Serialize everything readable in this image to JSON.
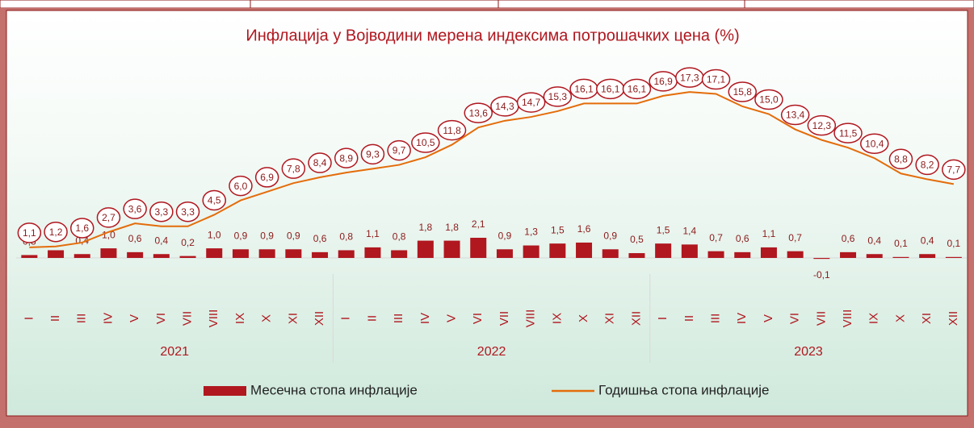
{
  "chart_data": {
    "type": "bar-line",
    "title": "Инфлација у Војводини мерена индексима потрошачких цена (%)",
    "categories": [
      "I",
      "II",
      "III",
      "IV",
      "V",
      "VI",
      "VII",
      "VIII",
      "IX",
      "X",
      "XI",
      "XII",
      "I",
      "II",
      "III",
      "IV",
      "V",
      "VI",
      "VII",
      "VIII",
      "IX",
      "X",
      "XI",
      "XII",
      "I",
      "II",
      "III",
      "IV",
      "V",
      "VI",
      "VII",
      "VIII",
      "IX",
      "X",
      "XI",
      "XII"
    ],
    "groups": [
      "2021",
      "2022",
      "2023"
    ],
    "ylim": [
      -2,
      20
    ],
    "series": [
      {
        "name": "Месечна стопа инфлације",
        "type": "bar",
        "color": "#b0171f",
        "values": [
          0.3,
          0.8,
          0.4,
          1.0,
          0.6,
          0.4,
          0.2,
          1.0,
          0.9,
          0.9,
          0.9,
          0.6,
          0.8,
          1.1,
          0.8,
          1.8,
          1.8,
          2.1,
          0.9,
          1.3,
          1.5,
          1.6,
          0.9,
          0.5,
          1.5,
          1.4,
          0.7,
          0.6,
          1.1,
          0.7,
          -0.1,
          0.6,
          0.4,
          0.1,
          0.4,
          0.1
        ],
        "value_labels": [
          "0,3",
          "0,8",
          "0,4",
          "1,0",
          "0,6",
          "0,4",
          "0,2",
          "1,0",
          "0,9",
          "0,9",
          "0,9",
          "0,6",
          "0,8",
          "1,1",
          "0,8",
          "1,8",
          "1,8",
          "2,1",
          "0,9",
          "1,3",
          "1,5",
          "1,6",
          "0,9",
          "0,5",
          "1,5",
          "1,4",
          "0,7",
          "0,6",
          "1,1",
          "0,7",
          "-0,1",
          "0,6",
          "0,4",
          "0,1",
          "0,4",
          "0,1"
        ]
      },
      {
        "name": "Годишња стопа инфлације",
        "type": "line",
        "color": "#e46c0a",
        "values": [
          1.1,
          1.2,
          1.6,
          2.7,
          3.6,
          3.3,
          3.3,
          4.5,
          6.0,
          6.9,
          7.8,
          8.4,
          8.9,
          9.3,
          9.7,
          10.5,
          11.8,
          13.6,
          14.3,
          14.7,
          15.3,
          16.1,
          16.1,
          16.1,
          16.9,
          17.3,
          17.1,
          15.8,
          15.0,
          13.4,
          12.3,
          11.5,
          10.4,
          8.8,
          8.2,
          7.7
        ],
        "value_labels": [
          "1,1",
          "1,2",
          "1,6",
          "2,7",
          "3,6",
          "3,3",
          "3,3",
          "4,5",
          "6,0",
          "6,9",
          "7,8",
          "8,4",
          "8,9",
          "9,3",
          "9,7",
          "10,5",
          "11,8",
          "13,6",
          "14,3",
          "14,7",
          "15,3",
          "16,1",
          "16,1",
          "16,1",
          "16,9",
          "17,3",
          "17,1",
          "15,8",
          "15,0",
          "13,4",
          "12,3",
          "11,5",
          "10,4",
          "8,8",
          "8,2",
          "7,7"
        ]
      }
    ]
  }
}
